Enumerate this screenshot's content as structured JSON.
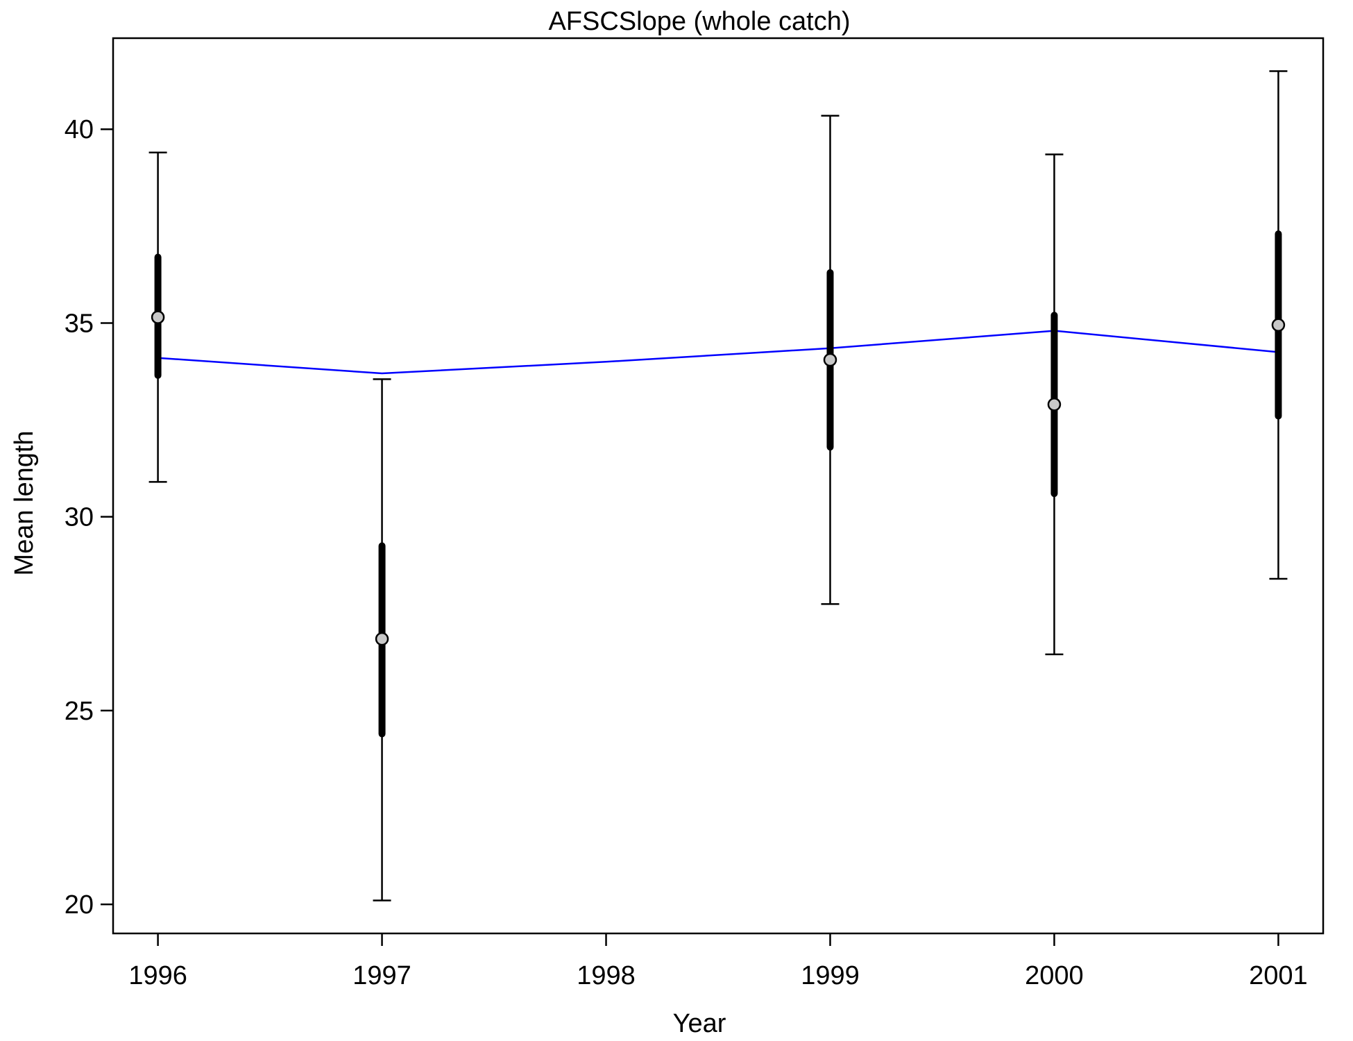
{
  "chart_data": {
    "type": "scatter",
    "title": "AFSCSlope (whole catch)",
    "xlabel": "Year",
    "ylabel": "Mean length",
    "xlim": [
      1995.8,
      2001.2
    ],
    "ylim": [
      19.25,
      42.35
    ],
    "x_ticks": [
      1996,
      1997,
      1998,
      1999,
      2000,
      2001
    ],
    "y_ticks": [
      20,
      25,
      30,
      35,
      40
    ],
    "grid": false,
    "legend": "none",
    "colors": {
      "points_fill": "#c8c8c8",
      "points_stroke": "#000000",
      "error_bars": "#000000",
      "expected_line": "#0000ff"
    },
    "series": [
      {
        "kind": "observed",
        "points": [
          {
            "x": 1996,
            "y": 35.15,
            "inner_low": 33.65,
            "inner_high": 36.7,
            "outer_low": 30.9,
            "outer_high": 39.4
          },
          {
            "x": 1997,
            "y": 26.85,
            "inner_low": 24.4,
            "inner_high": 29.25,
            "outer_low": 20.1,
            "outer_high": 33.55
          },
          {
            "x": 1999,
            "y": 34.05,
            "inner_low": 31.8,
            "inner_high": 36.3,
            "outer_low": 27.75,
            "outer_high": 40.35
          },
          {
            "x": 2000,
            "y": 32.9,
            "inner_low": 30.6,
            "inner_high": 35.2,
            "outer_low": 26.45,
            "outer_high": 39.35
          },
          {
            "x": 2001,
            "y": 34.95,
            "inner_low": 32.6,
            "inner_high": 37.3,
            "outer_low": 28.4,
            "outer_high": 41.5
          }
        ]
      },
      {
        "kind": "expected",
        "x": [
          1996,
          1997,
          1998,
          1999,
          2000,
          2001
        ],
        "y": [
          34.1,
          33.7,
          34.0,
          34.35,
          34.8,
          34.25
        ]
      }
    ]
  }
}
